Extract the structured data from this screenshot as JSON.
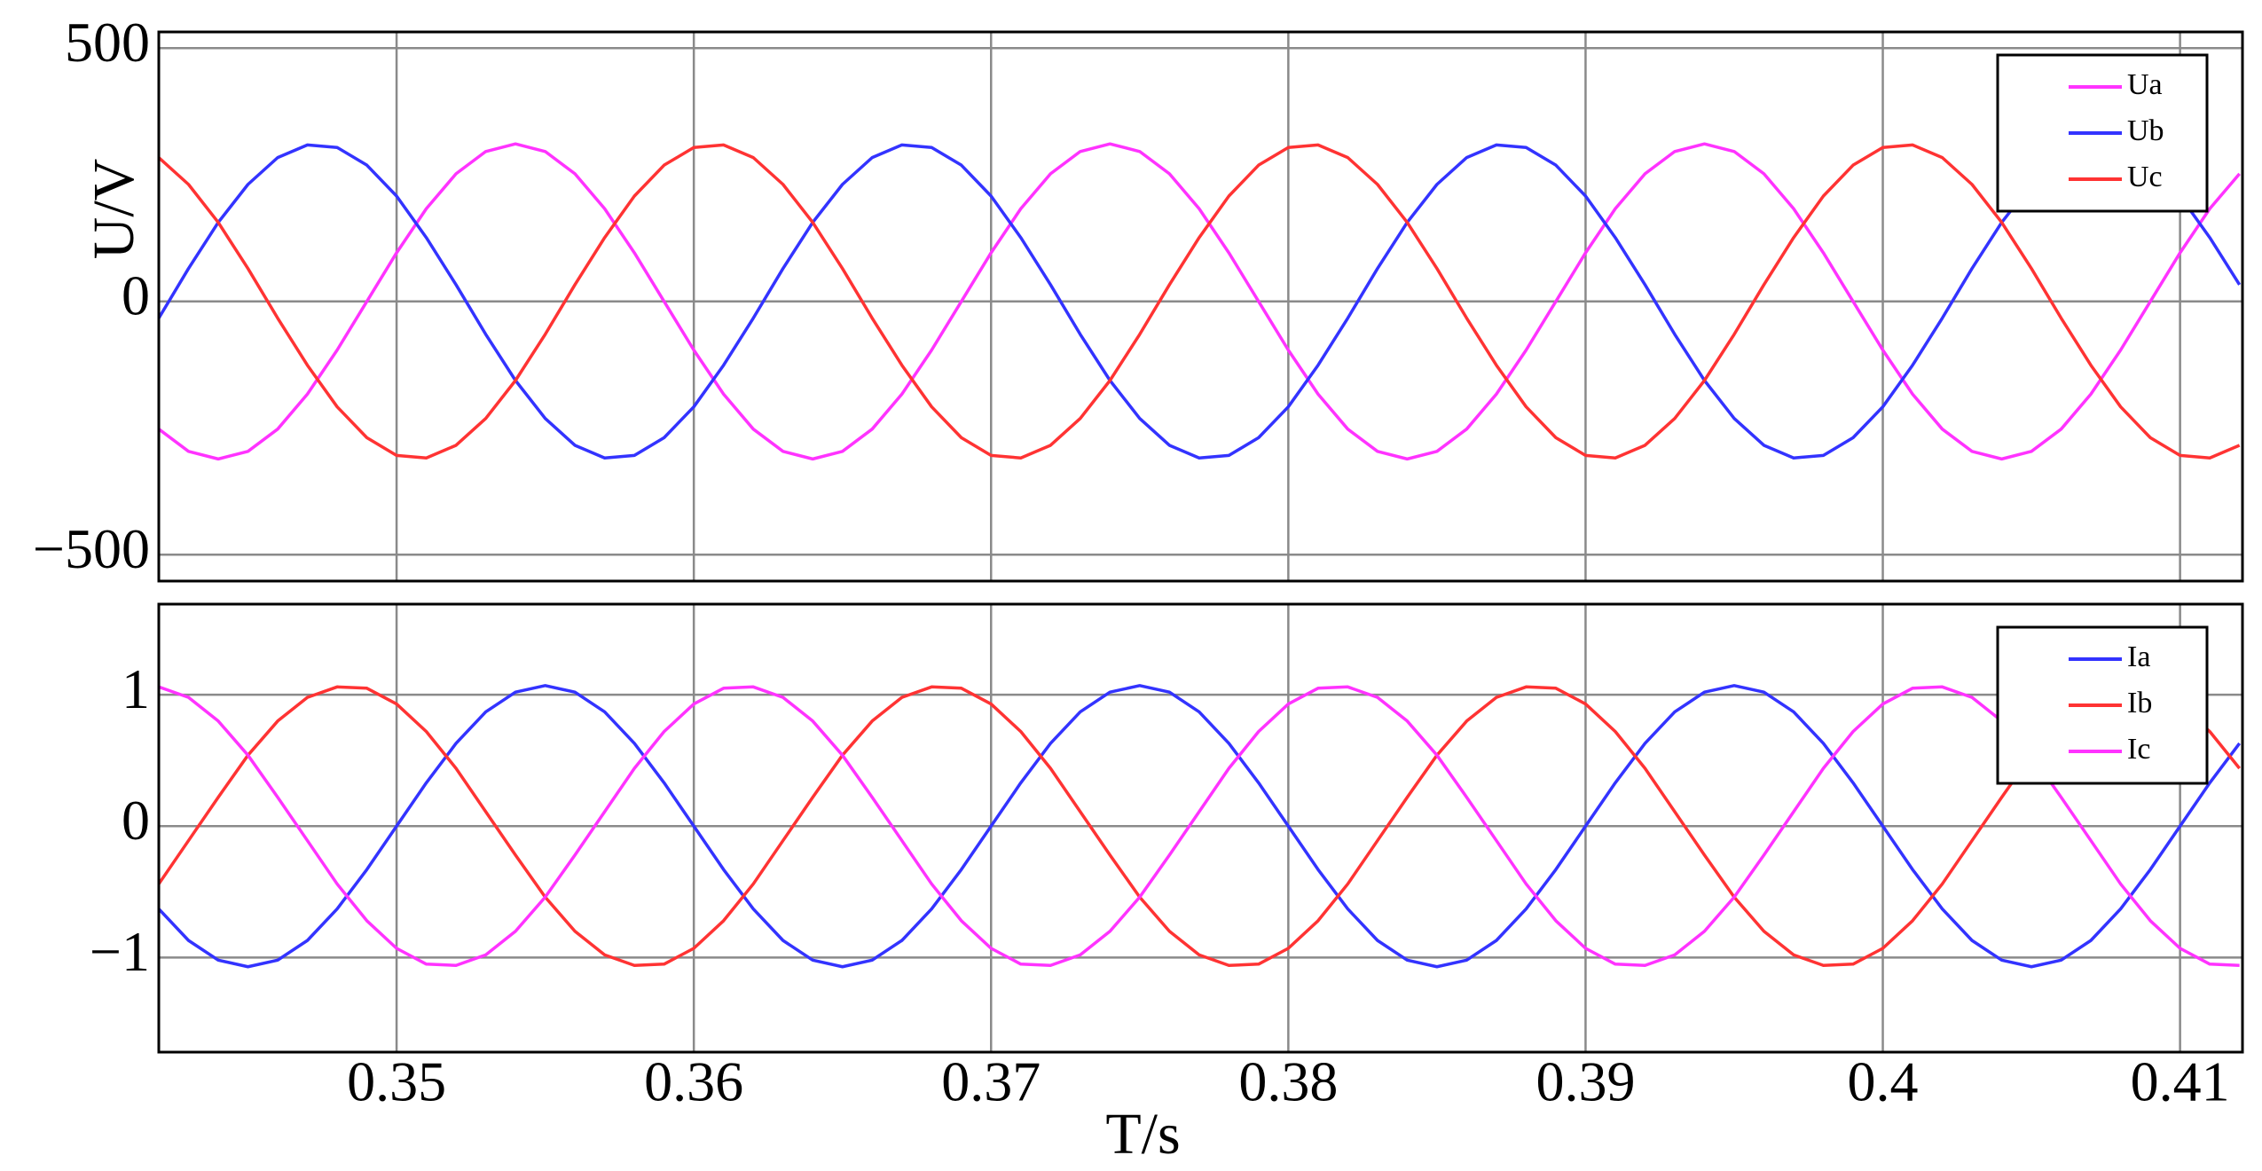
{
  "chart_data": [
    {
      "type": "line",
      "ylabel": "U/V",
      "x": [
        0.342,
        0.343,
        0.344,
        0.345,
        0.346,
        0.347,
        0.348,
        0.349,
        0.35,
        0.351,
        0.352,
        0.353,
        0.354,
        0.355,
        0.356,
        0.357,
        0.358,
        0.359,
        0.36,
        0.361,
        0.362,
        0.363,
        0.364,
        0.365,
        0.366,
        0.367,
        0.368,
        0.369,
        0.37,
        0.371,
        0.372,
        0.373,
        0.374,
        0.375,
        0.376,
        0.377,
        0.378,
        0.379,
        0.38,
        0.381,
        0.382,
        0.383,
        0.384,
        0.385,
        0.386,
        0.387,
        0.388,
        0.389,
        0.39,
        0.391,
        0.392,
        0.393,
        0.394,
        0.395,
        0.396,
        0.397,
        0.398,
        0.399,
        0.4,
        0.401,
        0.402,
        0.403,
        0.404,
        0.405,
        0.406,
        0.407,
        0.408,
        0.409,
        0.41,
        0.411,
        0.412
      ],
      "series": [
        {
          "name": "Ua",
          "color": "#ff33ff",
          "values": [
            -252,
            -296,
            -311,
            -296,
            -252,
            -183,
            -96,
            0,
            96,
            183,
            252,
            296,
            311,
            296,
            252,
            183,
            96,
            0,
            -96,
            -183,
            -252,
            -296,
            -311,
            -296,
            -252,
            -183,
            -96,
            0,
            96,
            183,
            252,
            296,
            311,
            296,
            252,
            183,
            96,
            0,
            -96,
            -183,
            -252,
            -296,
            -311,
            -296,
            -252,
            -183,
            -96,
            0,
            96,
            183,
            252,
            296,
            311,
            296,
            252,
            183,
            96,
            0,
            -96,
            -183,
            -252,
            -296,
            -311,
            -296,
            -252,
            -183,
            -96,
            0,
            96,
            183,
            252
          ]
        },
        {
          "name": "Ub",
          "color": "#3333ff",
          "values": [
            -33,
            65,
            156,
            231,
            284,
            309,
            304,
            269,
            208,
            126,
            33,
            -65,
            -156,
            -231,
            -284,
            -309,
            -304,
            -269,
            -208,
            -126,
            -33,
            65,
            156,
            231,
            284,
            309,
            304,
            269,
            208,
            126,
            33,
            -65,
            -156,
            -231,
            -284,
            -309,
            -304,
            -269,
            -208,
            -126,
            -33,
            65,
            156,
            231,
            284,
            309,
            304,
            269,
            208,
            126,
            33,
            -65,
            -156,
            -231,
            -284,
            -309,
            -304,
            -269,
            -208,
            -126,
            -33,
            65,
            156,
            231,
            284,
            309,
            304,
            269,
            208,
            126,
            33
          ]
        },
        {
          "name": "Uc",
          "color": "#ff3333",
          "values": [
            284,
            231,
            156,
            65,
            -33,
            -126,
            -208,
            -269,
            -304,
            -309,
            -284,
            -231,
            -156,
            -65,
            33,
            126,
            208,
            269,
            304,
            309,
            284,
            231,
            156,
            65,
            -33,
            -126,
            -208,
            -269,
            -304,
            -309,
            -284,
            -231,
            -156,
            -65,
            33,
            126,
            208,
            269,
            304,
            309,
            284,
            231,
            156,
            65,
            -33,
            -126,
            -208,
            -269,
            -304,
            -309,
            -284,
            -231,
            -156,
            -65,
            33,
            126,
            208,
            269,
            304,
            309,
            284,
            231,
            156,
            65,
            -33,
            -126,
            -208,
            -269,
            -304,
            -309,
            -284
          ]
        }
      ],
      "xlim": [
        0.342,
        0.4121
      ],
      "xticks": [
        0.35,
        0.36,
        0.37,
        0.38,
        0.39,
        0.4,
        0.41
      ],
      "xtick_labels": false,
      "ylim": [
        -552,
        532
      ],
      "yticks": [
        500,
        0,
        {
          "value": -500,
          "label": "−500"
        }
      ],
      "grid": true,
      "legend": "upper right"
    },
    {
      "type": "line",
      "xlabel": "T/s",
      "x": [
        0.342,
        0.343,
        0.344,
        0.345,
        0.346,
        0.347,
        0.348,
        0.349,
        0.35,
        0.351,
        0.352,
        0.353,
        0.354,
        0.355,
        0.356,
        0.357,
        0.358,
        0.359,
        0.36,
        0.361,
        0.362,
        0.363,
        0.364,
        0.365,
        0.366,
        0.367,
        0.368,
        0.369,
        0.37,
        0.371,
        0.372,
        0.373,
        0.374,
        0.375,
        0.376,
        0.377,
        0.378,
        0.379,
        0.38,
        0.381,
        0.382,
        0.383,
        0.384,
        0.385,
        0.386,
        0.387,
        0.388,
        0.389,
        0.39,
        0.391,
        0.392,
        0.393,
        0.394,
        0.395,
        0.396,
        0.397,
        0.398,
        0.399,
        0.4,
        0.401,
        0.402,
        0.403,
        0.404,
        0.405,
        0.406,
        0.407,
        0.408,
        0.409,
        0.41,
        0.411,
        0.412
      ],
      "series": [
        {
          "name": "Ia",
          "color": "#3333ff",
          "values": [
            -0.63,
            -0.87,
            -1.02,
            -1.07,
            -1.02,
            -0.87,
            -0.63,
            -0.33,
            0,
            0.33,
            0.63,
            0.87,
            1.02,
            1.07,
            1.02,
            0.87,
            0.63,
            0.33,
            0,
            -0.33,
            -0.63,
            -0.87,
            -1.02,
            -1.07,
            -1.02,
            -0.87,
            -0.63,
            -0.33,
            0,
            0.33,
            0.63,
            0.87,
            1.02,
            1.07,
            1.02,
            0.87,
            0.63,
            0.33,
            0,
            -0.33,
            -0.63,
            -0.87,
            -1.02,
            -1.07,
            -1.02,
            -0.87,
            -0.63,
            -0.33,
            0,
            0.33,
            0.63,
            0.87,
            1.02,
            1.07,
            1.02,
            0.87,
            0.63,
            0.33,
            0,
            -0.33,
            -0.63,
            -0.87,
            -1.02,
            -1.07,
            -1.02,
            -0.87,
            -0.63,
            -0.33,
            0,
            0.33,
            0.63
          ]
        },
        {
          "name": "Ib",
          "color": "#ff3333",
          "values": [
            -0.44,
            -0.11,
            0.22,
            0.54,
            0.8,
            0.98,
            1.06,
            1.05,
            0.93,
            0.72,
            0.44,
            0.11,
            -0.22,
            -0.54,
            -0.8,
            -0.98,
            -1.06,
            -1.05,
            -0.93,
            -0.72,
            -0.44,
            -0.11,
            0.22,
            0.54,
            0.8,
            0.98,
            1.06,
            1.05,
            0.93,
            0.72,
            0.44,
            0.11,
            -0.22,
            -0.54,
            -0.8,
            -0.98,
            -1.06,
            -1.05,
            -0.93,
            -0.72,
            -0.44,
            -0.11,
            0.22,
            0.54,
            0.8,
            0.98,
            1.06,
            1.05,
            0.93,
            0.72,
            0.44,
            0.11,
            -0.22,
            -0.54,
            -0.8,
            -0.98,
            -1.06,
            -1.05,
            -0.93,
            -0.72,
            -0.44,
            -0.11,
            0.22,
            0.54,
            0.8,
            0.98,
            1.06,
            1.05,
            0.93,
            0.72,
            0.44
          ]
        },
        {
          "name": "Ic",
          "color": "#ff33ff",
          "values": [
            1.06,
            0.98,
            0.8,
            0.54,
            0.22,
            -0.11,
            -0.44,
            -0.72,
            -0.93,
            -1.05,
            -1.06,
            -0.98,
            -0.8,
            -0.54,
            -0.22,
            0.11,
            0.44,
            0.72,
            0.93,
            1.05,
            1.06,
            0.98,
            0.8,
            0.54,
            0.22,
            -0.11,
            -0.44,
            -0.72,
            -0.93,
            -1.05,
            -1.06,
            -0.98,
            -0.8,
            -0.54,
            -0.22,
            0.11,
            0.44,
            0.72,
            0.93,
            1.05,
            1.06,
            0.98,
            0.8,
            0.54,
            0.22,
            -0.11,
            -0.44,
            -0.72,
            -0.93,
            -1.05,
            -1.06,
            -0.98,
            -0.8,
            -0.54,
            -0.22,
            0.11,
            0.44,
            0.72,
            0.93,
            1.05,
            1.06,
            0.98,
            0.8,
            0.54,
            0.22,
            -0.11,
            -0.44,
            -0.72,
            -0.93,
            -1.05,
            -1.06
          ]
        }
      ],
      "xlim": [
        0.342,
        0.4121
      ],
      "xticks": [
        0.35,
        0.36,
        0.37,
        0.38,
        0.39,
        0.4,
        0.41
      ],
      "xtick_labels": true,
      "ylim": [
        -1.72,
        1.69
      ],
      "yticks": [
        1,
        0,
        {
          "value": -1,
          "label": "−1"
        }
      ],
      "grid": true,
      "legend": "upper right"
    }
  ]
}
